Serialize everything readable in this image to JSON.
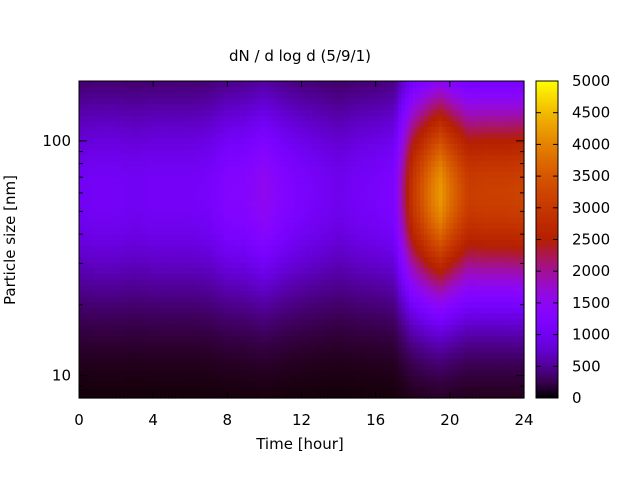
{
  "chart_data": {
    "type": "heatmap",
    "title": "dN / d log d (5/9/1)",
    "xlabel": "Time [hour]",
    "ylabel": "Particle size [nm]",
    "x_range": [
      0,
      24
    ],
    "x_ticks": [
      0,
      4,
      8,
      12,
      16,
      20,
      24
    ],
    "x_tick_labels": [
      "0",
      "4",
      "8",
      "12",
      "16",
      "20",
      "24"
    ],
    "y_scale": "log",
    "y_range": [
      8,
      180
    ],
    "y_ticks": [
      10,
      100
    ],
    "y_tick_labels": [
      "10",
      "100"
    ],
    "colorbar": {
      "palette": "black-purple-red-orange-yellow",
      "range": [
        0,
        5000
      ],
      "ticks": [
        0,
        500,
        1000,
        1500,
        2000,
        2500,
        3000,
        3500,
        4000,
        4500,
        5000
      ],
      "tick_labels": [
        "0",
        "500",
        "1000",
        "1500",
        "2000",
        "2500",
        "3000",
        "3500",
        "4000",
        "4500",
        "5000"
      ]
    },
    "mode_size_nm": 60,
    "time_profile": {
      "hours": [
        0,
        1,
        2,
        3,
        4,
        5,
        6,
        7,
        8,
        9,
        10,
        11,
        12,
        13,
        14,
        15,
        16,
        17,
        18,
        19,
        19.5,
        20,
        21,
        22,
        23,
        24
      ],
      "mode_peak_counts": [
        1000,
        1050,
        1050,
        1000,
        1050,
        1050,
        1050,
        1100,
        1300,
        1350,
        1550,
        1300,
        1150,
        1050,
        950,
        1050,
        1100,
        1200,
        3000,
        3900,
        4200,
        3800,
        3100,
        3150,
        3150,
        3200
      ]
    }
  }
}
